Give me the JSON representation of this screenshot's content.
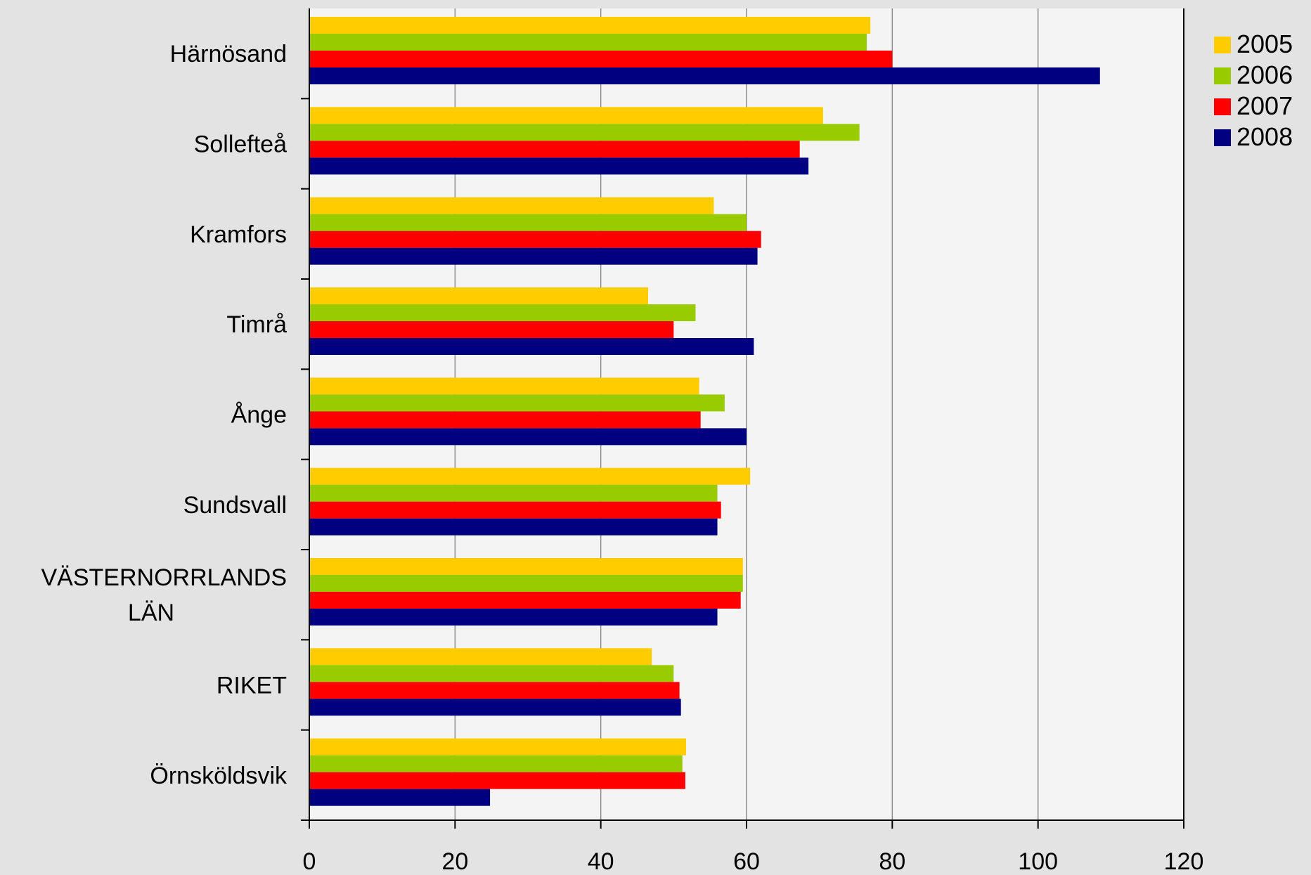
{
  "chart_data": {
    "type": "bar",
    "orientation": "horizontal",
    "title": "",
    "xlabel": "",
    "ylabel": "",
    "categories": [
      [
        "Härnösand"
      ],
      [
        "Sollefteå"
      ],
      [
        "Kramfors"
      ],
      [
        "Timrå"
      ],
      [
        "Ånge"
      ],
      [
        "Sundsvall"
      ],
      [
        "VÄSTERNORRLANDS",
        "LÄN"
      ],
      [
        "RIKET"
      ],
      [
        "Örnsköldsvik"
      ]
    ],
    "series": [
      {
        "name": "2005",
        "color": "#ffcc00",
        "values": [
          77,
          70.5,
          55.5,
          46.5,
          53.5,
          60.5,
          59.5,
          47,
          51.7
        ]
      },
      {
        "name": "2006",
        "color": "#99cc00",
        "values": [
          76.5,
          75.5,
          60,
          53,
          57,
          56,
          59.5,
          50,
          51.2
        ]
      },
      {
        "name": "2007",
        "color": "#ff0000",
        "values": [
          80,
          67.3,
          62,
          50,
          53.7,
          56.5,
          59.2,
          50.8,
          51.6
        ]
      },
      {
        "name": "2008",
        "color": "#000080",
        "values": [
          108.5,
          68.5,
          61.5,
          61,
          60,
          56,
          56,
          51,
          24.8
        ]
      }
    ],
    "xlim": [
      0,
      120
    ],
    "x_ticks": [
      0,
      20,
      40,
      60,
      80,
      100,
      120
    ],
    "grid": "vertical",
    "legend_position": "right"
  }
}
